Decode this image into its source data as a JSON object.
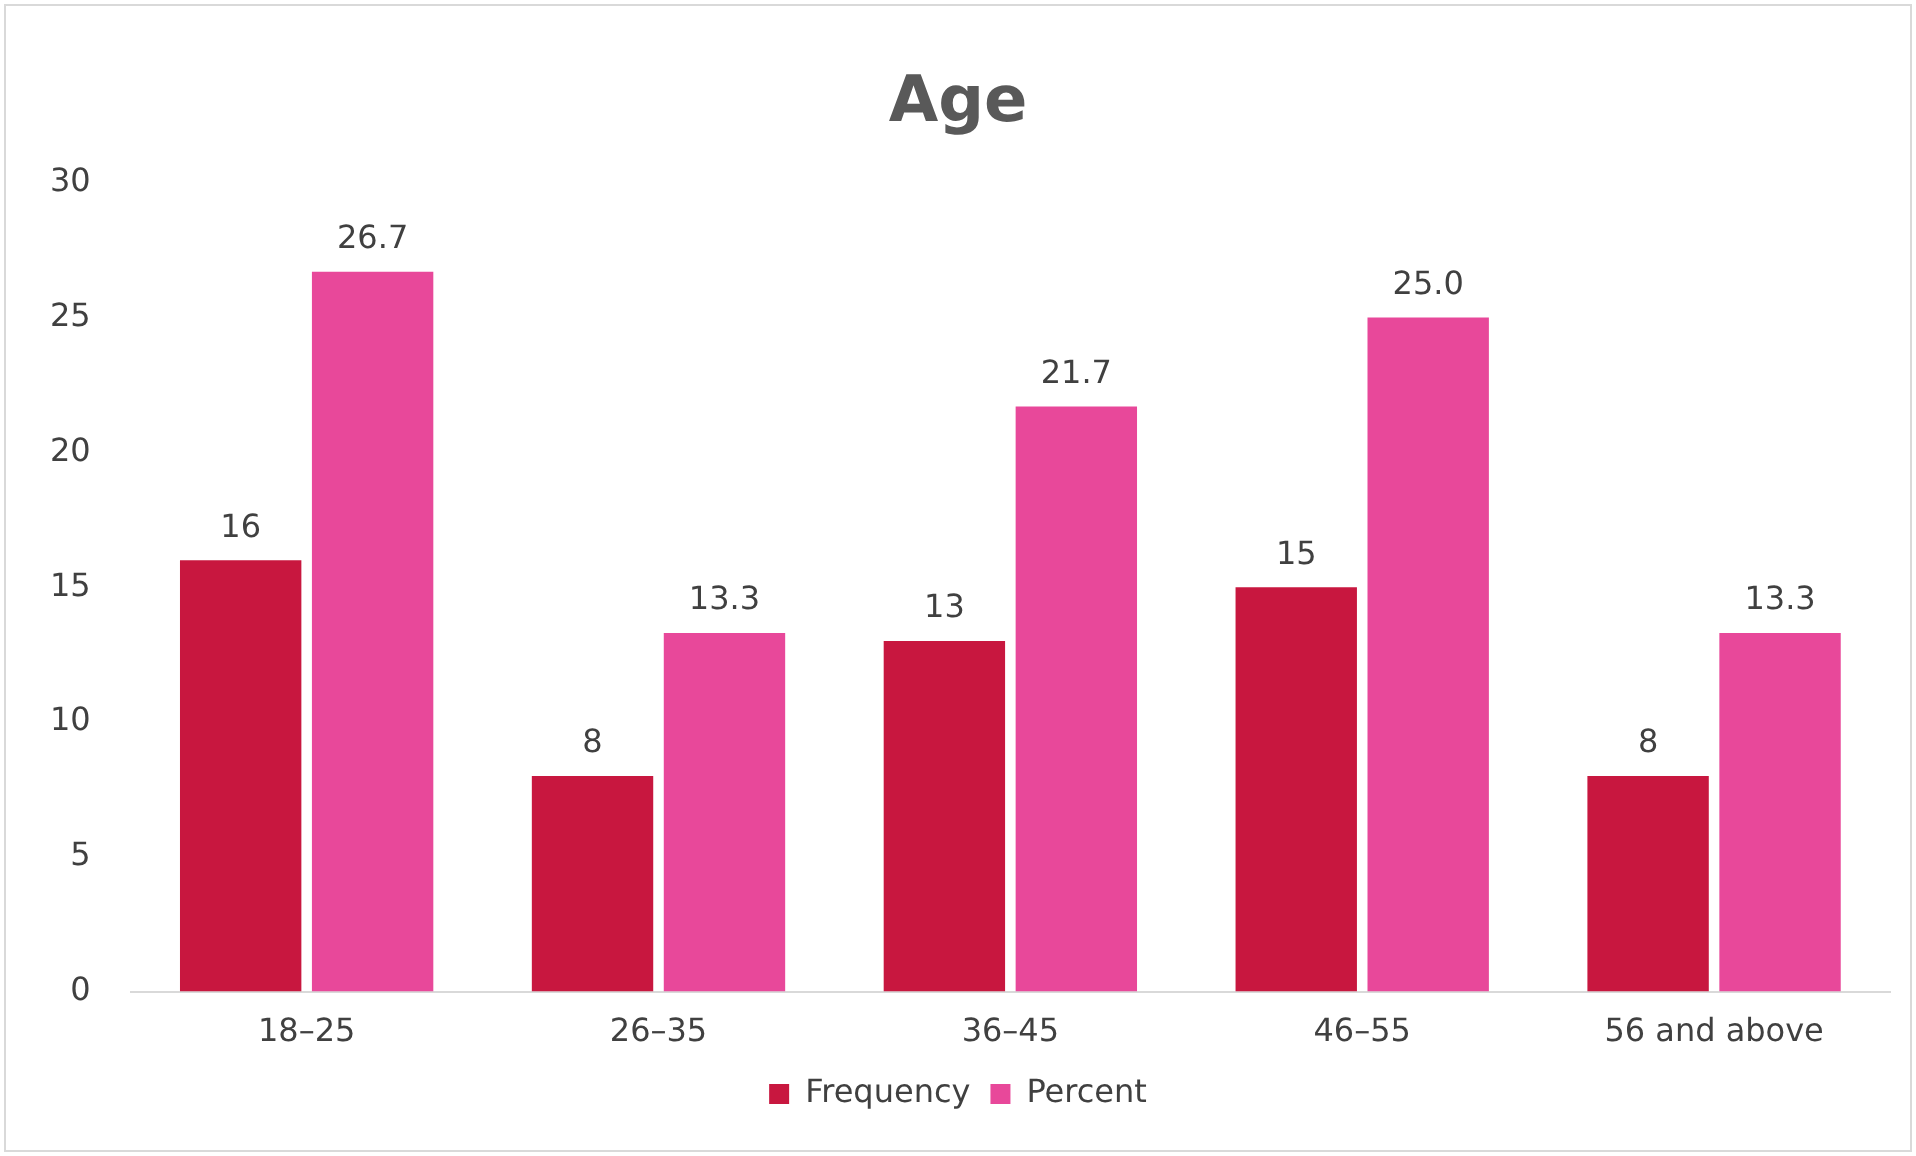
{
  "chart_data": {
    "type": "bar",
    "title": "Age",
    "categories": [
      "18–25",
      "26–35",
      "36–45",
      "46–55",
      "56 and above"
    ],
    "series": [
      {
        "name": "Frequency",
        "color": "#c8173f",
        "values": [
          16,
          8,
          13,
          15,
          8
        ],
        "value_labels": [
          "16",
          "8",
          "13",
          "15",
          "8"
        ]
      },
      {
        "name": "Percent",
        "color": "#e8489a",
        "values": [
          26.7,
          13.3,
          21.7,
          25.0,
          13.3
        ],
        "value_labels": [
          "26.7",
          "13.3",
          "21.7",
          "25.0",
          "13.3"
        ]
      }
    ],
    "ylim": [
      0,
      30
    ],
    "yticks": [
      0,
      5,
      10,
      15,
      20,
      25,
      30
    ],
    "grid": false,
    "legend": "bottom"
  }
}
